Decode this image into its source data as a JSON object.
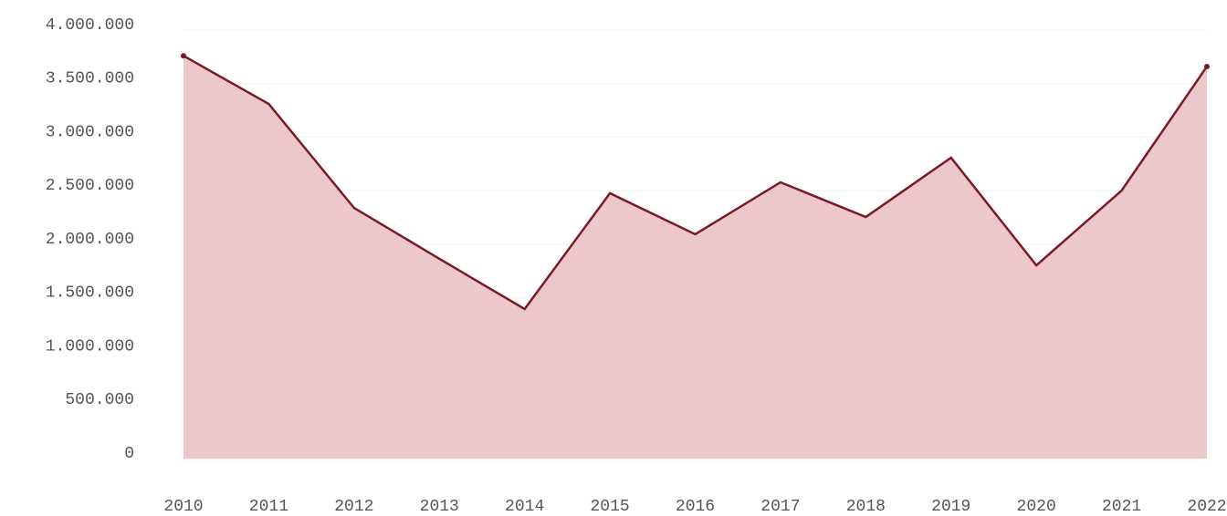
{
  "chart_data": {
    "type": "area",
    "categories": [
      "2010",
      "2011",
      "2012",
      "2013",
      "2014",
      "2015",
      "2016",
      "2017",
      "2018",
      "2019",
      "2020",
      "2021",
      "2022"
    ],
    "series": [
      {
        "color": "#7a1a24",
        "fill": "#edc8cb",
        "values": [
          3760000,
          3310000,
          2340000,
          1865000,
          1396000,
          2477000,
          2094000,
          2579000,
          2255000,
          2809000,
          1804000,
          2502000,
          3660000
        ]
      }
    ],
    "ylim": [
      0,
      4000000
    ],
    "yticks": [
      0,
      {
        "value": 500000,
        "label": "500.000"
      },
      {
        "value": 1000000,
        "label": "1.000.000"
      },
      {
        "value": 1500000,
        "label": "1.500.000"
      },
      {
        "value": 2000000,
        "label": "2.000.000"
      },
      {
        "value": 2500000,
        "label": "2.500.000"
      },
      {
        "value": 3000000,
        "label": "3.000.000"
      },
      {
        "value": 3500000,
        "label": "3.500.000"
      },
      {
        "value": 4000000,
        "label": "4.000.000"
      }
    ],
    "grid": true
  }
}
